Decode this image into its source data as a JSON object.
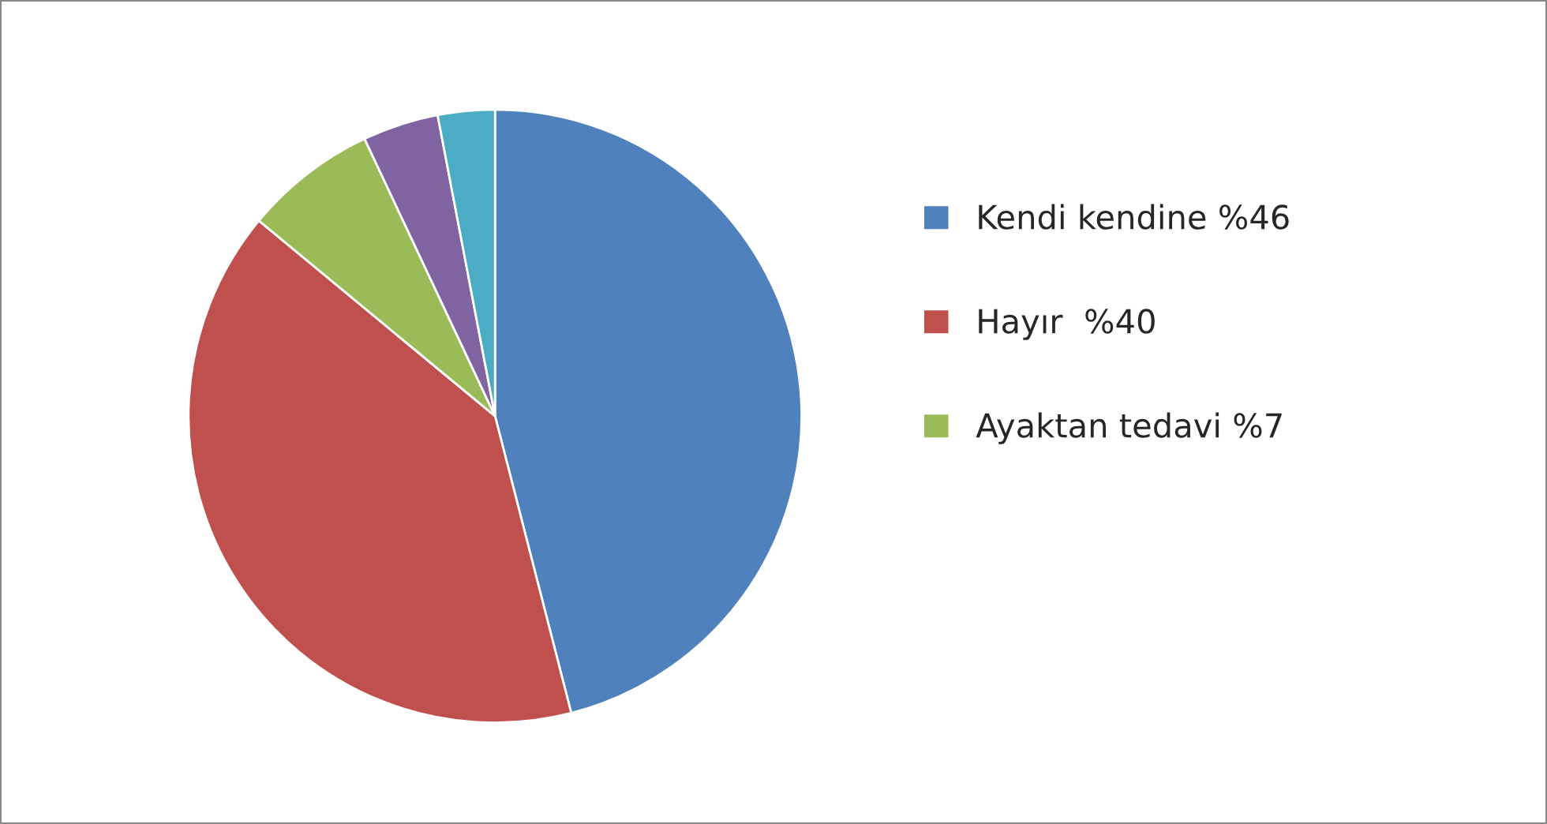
{
  "chart_data": {
    "type": "pie",
    "categories": [
      "Kendi kendine %46",
      "Hayır  %40",
      "Ayaktan tedavi %7",
      null,
      null
    ],
    "values": [
      46,
      40,
      7,
      4,
      3
    ],
    "colors": [
      "#4f81bd",
      "#c0504d",
      "#9bbb59",
      "#8064a2",
      "#4bacc6"
    ],
    "legend": "right"
  }
}
